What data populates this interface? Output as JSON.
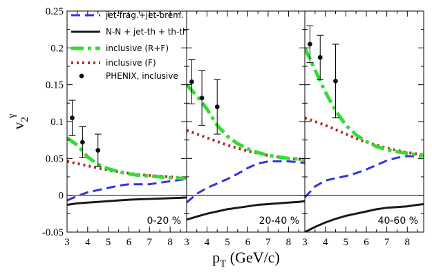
{
  "chart_data": {
    "type": "line",
    "ylabel": {
      "base": "v",
      "sub": "2",
      "sup": "γ"
    },
    "xlabel": {
      "base": "p",
      "sub": "T",
      "rest": " (GeV/c)"
    },
    "ylim": [
      -0.05,
      0.25
    ],
    "yticks": [
      "-0.05",
      "0",
      "0.05",
      "0.1",
      "0.15",
      "0.2",
      "0.25"
    ],
    "ytick_values": [
      -0.05,
      0,
      0.05,
      0.1,
      0.15,
      0.2,
      0.25
    ],
    "xlim": [
      3,
      8.8
    ],
    "xticks": [
      "3",
      "4",
      "5",
      "6",
      "7",
      "8"
    ],
    "xtick_values": [
      3,
      4,
      5,
      6,
      7,
      8
    ],
    "zero_line": true,
    "legend": [
      {
        "key": "jetfrag",
        "label": "jet-frag.+jet-brem.",
        "color": "#3232e0",
        "style": "dashed"
      },
      {
        "key": "nn",
        "label": "N-N + jet-th + th-th",
        "color": "#1a1a1a",
        "style": "solid"
      },
      {
        "key": "rf",
        "label": "inclusive (R+F)",
        "color": "#33dd33",
        "style": "dashdot"
      },
      {
        "key": "f",
        "label": "inclusive (F)",
        "color": "#b52a2a",
        "style": "dotted"
      },
      {
        "key": "phenix",
        "label": "PHENIX, inclusive",
        "color": "#111111",
        "style": "marker"
      }
    ],
    "panels": [
      {
        "name": "0-20 %",
        "label": "0-20 %",
        "series": {
          "jetfrag": {
            "x": [
              3.0,
              3.5,
              4.0,
              4.5,
              5.0,
              5.5,
              6.0,
              6.5,
              7.0,
              7.5,
              8.0,
              8.5,
              8.8
            ],
            "y": [
              -0.007,
              -0.001,
              0.004,
              0.007,
              0.01,
              0.013,
              0.015,
              0.015,
              0.015,
              0.017,
              0.019,
              0.021,
              0.022
            ]
          },
          "nn": {
            "x": [
              3.0,
              3.5,
              4.0,
              4.5,
              5.0,
              5.5,
              6.0,
              6.5,
              7.0,
              7.5,
              8.0,
              8.5,
              8.8
            ],
            "y": [
              -0.013,
              -0.011,
              -0.01,
              -0.009,
              -0.008,
              -0.007,
              -0.006,
              -0.0055,
              -0.005,
              -0.0045,
              -0.004,
              -0.0035,
              -0.003
            ]
          },
          "rf": {
            "x": [
              3.0,
              3.5,
              4.0,
              4.5,
              5.0,
              5.5,
              6.0,
              6.5,
              7.0,
              7.5,
              8.0,
              8.5,
              8.8
            ],
            "y": [
              0.078,
              0.068,
              0.052,
              0.042,
              0.036,
              0.032,
              0.029,
              0.027,
              0.026,
              0.025,
              0.024,
              0.023,
              0.023
            ]
          },
          "f": {
            "x": [
              3.0,
              3.5,
              4.0,
              4.5,
              5.0,
              5.5,
              6.0,
              6.5,
              7.0,
              7.5,
              8.0,
              8.5,
              8.8
            ],
            "y": [
              0.046,
              0.043,
              0.04,
              0.037,
              0.034,
              0.032,
              0.03,
              0.028,
              0.027,
              0.026,
              0.025,
              0.024,
              0.024
            ]
          }
        },
        "phenix": [
          {
            "x": 3.25,
            "y": 0.105,
            "err": 0.024
          },
          {
            "x": 3.75,
            "y": 0.072,
            "err": 0.021
          },
          {
            "x": 4.5,
            "y": 0.061,
            "err": 0.022
          }
        ]
      },
      {
        "name": "20-40 %",
        "label": "20-40 %",
        "series": {
          "jetfrag": {
            "x": [
              3.0,
              3.5,
              4.0,
              4.5,
              5.0,
              5.5,
              6.0,
              6.5,
              7.0,
              7.5,
              8.0,
              8.5,
              8.8
            ],
            "y": [
              -0.01,
              0.002,
              0.01,
              0.016,
              0.022,
              0.029,
              0.037,
              0.043,
              0.046,
              0.046,
              0.046,
              0.045,
              0.044
            ]
          },
          "nn": {
            "x": [
              3.0,
              3.5,
              4.0,
              4.5,
              5.0,
              5.5,
              6.0,
              6.5,
              7.0,
              7.5,
              8.0,
              8.5,
              8.8
            ],
            "y": [
              -0.033,
              -0.029,
              -0.025,
              -0.022,
              -0.019,
              -0.017,
              -0.015,
              -0.013,
              -0.012,
              -0.011,
              -0.01,
              -0.009,
              -0.008
            ]
          },
          "rf": {
            "x": [
              3.0,
              3.5,
              4.0,
              4.5,
              5.0,
              5.5,
              6.0,
              6.5,
              7.0,
              7.5,
              8.0,
              8.5,
              8.8
            ],
            "y": [
              0.15,
              0.135,
              0.117,
              0.095,
              0.08,
              0.07,
              0.063,
              0.058,
              0.054,
              0.052,
              0.05,
              0.049,
              0.048
            ]
          },
          "f": {
            "x": [
              3.0,
              3.5,
              4.0,
              4.5,
              5.0,
              5.5,
              6.0,
              6.5,
              7.0,
              7.5,
              8.0,
              8.5,
              8.8
            ],
            "y": [
              0.088,
              0.083,
              0.078,
              0.073,
              0.068,
              0.064,
              0.06,
              0.057,
              0.054,
              0.052,
              0.05,
              0.049,
              0.048
            ]
          }
        },
        "phenix": [
          {
            "x": 3.25,
            "y": 0.154,
            "err": 0.03
          },
          {
            "x": 3.75,
            "y": 0.132,
            "err": 0.037
          },
          {
            "x": 4.5,
            "y": 0.12,
            "err": 0.037
          }
        ]
      },
      {
        "name": "40-60 %",
        "label": "40-60 %",
        "series": {
          "jetfrag": {
            "x": [
              3.0,
              3.5,
              4.0,
              4.5,
              5.0,
              5.5,
              6.0,
              6.5,
              7.0,
              7.5,
              8.0,
              8.5,
              8.8
            ],
            "y": [
              -0.003,
              0.012,
              0.02,
              0.023,
              0.026,
              0.03,
              0.035,
              0.041,
              0.047,
              0.051,
              0.053,
              0.053,
              0.053
            ]
          },
          "nn": {
            "x": [
              3.0,
              3.5,
              4.0,
              4.5,
              5.0,
              5.5,
              6.0,
              6.5,
              7.0,
              7.5,
              8.0,
              8.5,
              8.8
            ],
            "y": [
              -0.05,
              -0.043,
              -0.037,
              -0.032,
              -0.028,
              -0.025,
              -0.022,
              -0.019,
              -0.017,
              -0.016,
              -0.015,
              -0.013,
              -0.012
            ]
          },
          "rf": {
            "x": [
              3.0,
              3.5,
              4.0,
              4.5,
              5.0,
              5.5,
              6.0,
              6.5,
              7.0,
              7.5,
              8.0,
              8.5,
              8.8
            ],
            "y": [
              0.2,
              0.17,
              0.14,
              0.115,
              0.095,
              0.082,
              0.073,
              0.066,
              0.062,
              0.059,
              0.057,
              0.055,
              0.054
            ]
          },
          "f": {
            "x": [
              3.0,
              3.5,
              4.0,
              4.5,
              5.0,
              5.5,
              6.0,
              6.5,
              7.0,
              7.5,
              8.0,
              8.5,
              8.8
            ],
            "y": [
              0.105,
              0.1,
              0.095,
              0.089,
              0.083,
              0.077,
              0.072,
              0.068,
              0.064,
              0.061,
              0.058,
              0.056,
              0.055
            ]
          }
        },
        "phenix": [
          {
            "x": 3.25,
            "y": 0.205,
            "err": 0.025
          },
          {
            "x": 3.75,
            "y": 0.187,
            "err": 0.03
          },
          {
            "x": 4.5,
            "y": 0.155,
            "err": 0.05
          }
        ]
      }
    ]
  }
}
